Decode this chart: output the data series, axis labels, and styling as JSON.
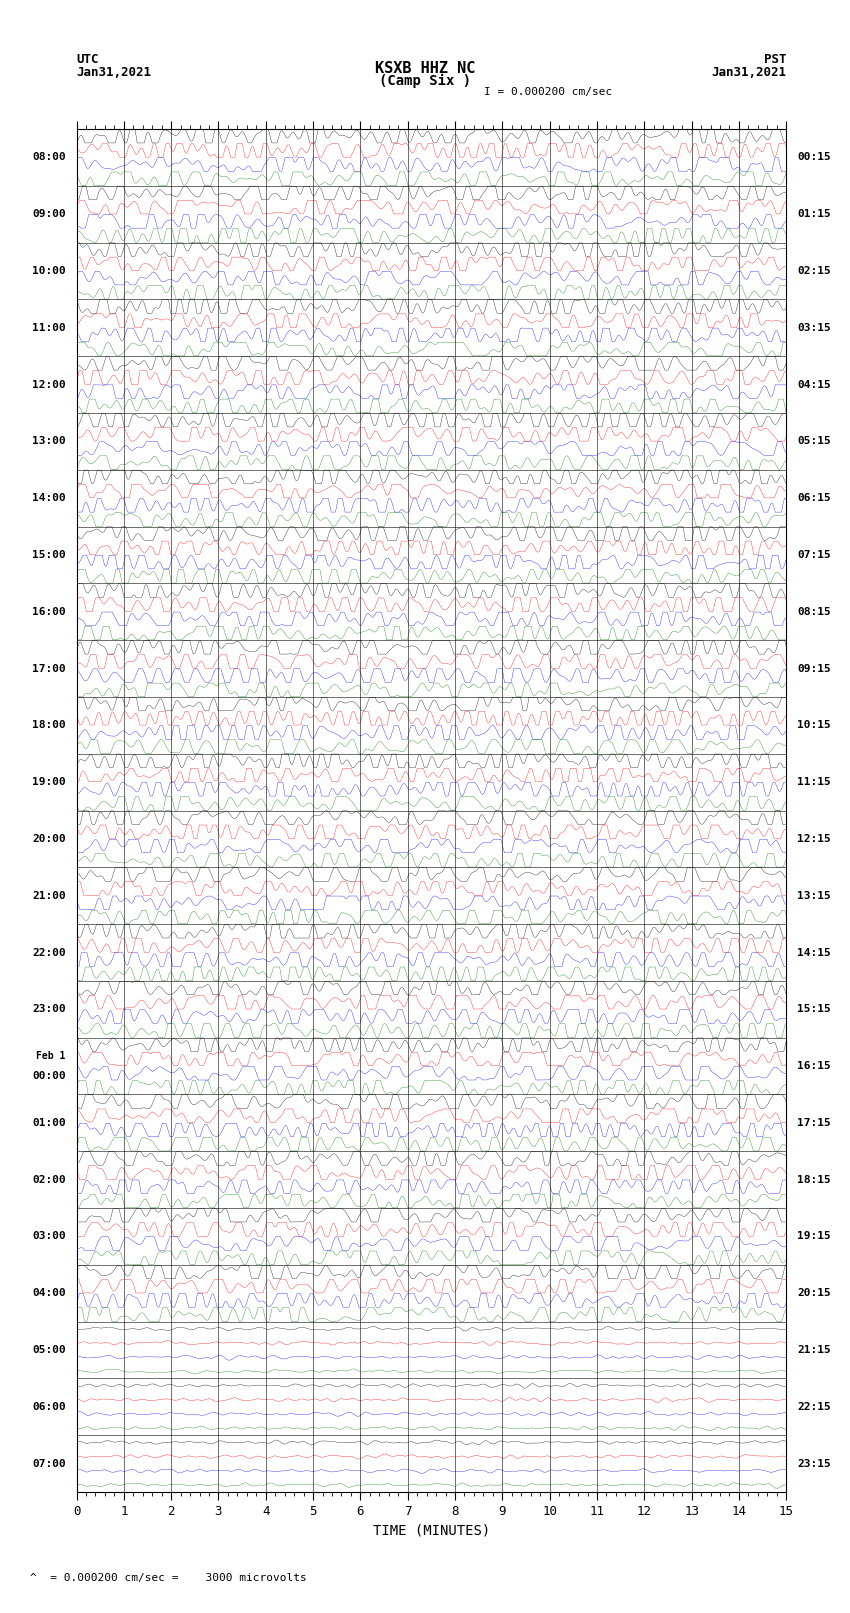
{
  "title_line1": "KSXB HHZ NC",
  "title_line2": "(Camp Six )",
  "scale_label": "I = 0.000200 cm/sec",
  "utc_label": "UTC",
  "pst_label": "PST",
  "left_date": "Jan31,2021",
  "right_date": "Jan31,2021",
  "bottom_label": "TIME (MINUTES)",
  "scale_note": "= 0.000200 cm/sec =    3000 microvolts",
  "xlabel_ticks": [
    0,
    1,
    2,
    3,
    4,
    5,
    6,
    7,
    8,
    9,
    10,
    11,
    12,
    13,
    14,
    15
  ],
  "utc_times_left": [
    "08:00",
    "09:00",
    "10:00",
    "11:00",
    "12:00",
    "13:00",
    "14:00",
    "15:00",
    "16:00",
    "17:00",
    "18:00",
    "19:00",
    "20:00",
    "21:00",
    "22:00",
    "23:00",
    "Feb 1\n00:00",
    "01:00",
    "02:00",
    "03:00",
    "04:00",
    "05:00",
    "06:00",
    "07:00"
  ],
  "pst_times_right": [
    "00:15",
    "01:15",
    "02:15",
    "03:15",
    "04:15",
    "05:15",
    "06:15",
    "07:15",
    "08:15",
    "09:15",
    "10:15",
    "11:15",
    "12:15",
    "13:15",
    "14:15",
    "15:15",
    "16:15",
    "17:15",
    "18:15",
    "19:15",
    "20:15",
    "21:15",
    "22:15",
    "23:15"
  ],
  "n_rows": 24,
  "n_active_rows": 21,
  "sub_traces": [
    "black",
    "red",
    "blue",
    "green"
  ],
  "n_sub": 4,
  "time_minutes": 15,
  "bg_color": "white",
  "fig_width": 8.5,
  "fig_height": 16.13,
  "dpi": 100,
  "samples_per_row": 8000,
  "active_amp": 0.11,
  "inactive_amp": 0.015,
  "linewidth": 0.25
}
